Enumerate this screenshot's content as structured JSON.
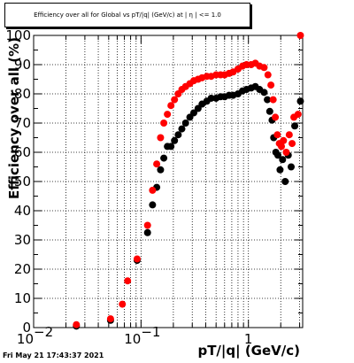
{
  "title": "Efficiency over all for Global vs pT/|q| (GeV/c) at | η | <= 1.0",
  "footer": "Fri May 21 17:43:37 2021",
  "colors": {
    "series_red": "#ff0000",
    "series_black": "#000000"
  },
  "chart_data": {
    "type": "scatter",
    "xlabel": "pT/|q| (GeV/c)",
    "ylabel": "Efficiency over all (%)",
    "xscale": "log",
    "xlim": [
      0.01,
      3.2
    ],
    "ylim": [
      0,
      100
    ],
    "grid": true,
    "x_ticks": [
      {
        "value": 0.01,
        "label": "10",
        "exp": "−2"
      },
      {
        "value": 0.1,
        "label": "10",
        "exp": "−1"
      },
      {
        "value": 1,
        "label": "1",
        "exp": ""
      }
    ],
    "y_ticks": [
      0,
      10,
      20,
      30,
      40,
      50,
      60,
      70,
      80,
      90,
      100
    ],
    "series": [
      {
        "color": "#ff0000",
        "points": [
          [
            0.025,
            1
          ],
          [
            0.052,
            3
          ],
          [
            0.067,
            8
          ],
          [
            0.075,
            16
          ],
          [
            0.092,
            23.5
          ],
          [
            0.115,
            35
          ],
          [
            0.128,
            47
          ],
          [
            0.14,
            56
          ],
          [
            0.152,
            65
          ],
          [
            0.163,
            70
          ],
          [
            0.176,
            73
          ],
          [
            0.19,
            76
          ],
          [
            0.205,
            78
          ],
          [
            0.222,
            80
          ],
          [
            0.24,
            81.5
          ],
          [
            0.26,
            82.5
          ],
          [
            0.285,
            83.5
          ],
          [
            0.31,
            84.5
          ],
          [
            0.34,
            85
          ],
          [
            0.37,
            85.5
          ],
          [
            0.41,
            86
          ],
          [
            0.45,
            86
          ],
          [
            0.5,
            86.5
          ],
          [
            0.55,
            86.5
          ],
          [
            0.6,
            86.5
          ],
          [
            0.66,
            87
          ],
          [
            0.72,
            87.5
          ],
          [
            0.8,
            88.5
          ],
          [
            0.88,
            89.5
          ],
          [
            0.96,
            90
          ],
          [
            1.06,
            90
          ],
          [
            1.16,
            90.5
          ],
          [
            1.27,
            89.5
          ],
          [
            1.4,
            89
          ],
          [
            1.52,
            86.5
          ],
          [
            1.62,
            83
          ],
          [
            1.7,
            78
          ],
          [
            1.78,
            72
          ],
          [
            1.86,
            66
          ],
          [
            1.94,
            63
          ],
          [
            2.03,
            62
          ],
          [
            2.12,
            64
          ],
          [
            2.25,
            60
          ],
          [
            2.4,
            66
          ],
          [
            2.55,
            63
          ],
          [
            2.65,
            72
          ],
          [
            2.9,
            73
          ],
          [
            3.05,
            100
          ]
        ]
      },
      {
        "color": "#000000",
        "points": [
          [
            0.025,
            0.5
          ],
          [
            0.052,
            2.5
          ],
          [
            0.092,
            23
          ],
          [
            0.115,
            32.5
          ],
          [
            0.128,
            42
          ],
          [
            0.14,
            48
          ],
          [
            0.152,
            54
          ],
          [
            0.163,
            58
          ],
          [
            0.176,
            62
          ],
          [
            0.19,
            62
          ],
          [
            0.205,
            64
          ],
          [
            0.222,
            66
          ],
          [
            0.24,
            68
          ],
          [
            0.26,
            70
          ],
          [
            0.285,
            72
          ],
          [
            0.31,
            73.5
          ],
          [
            0.34,
            75
          ],
          [
            0.37,
            76.5
          ],
          [
            0.41,
            77.5
          ],
          [
            0.45,
            78.5
          ],
          [
            0.5,
            78.5
          ],
          [
            0.55,
            79
          ],
          [
            0.6,
            79
          ],
          [
            0.66,
            79.5
          ],
          [
            0.72,
            79.5
          ],
          [
            0.8,
            80
          ],
          [
            0.88,
            81
          ],
          [
            0.96,
            81.5
          ],
          [
            1.06,
            82
          ],
          [
            1.16,
            82.5
          ],
          [
            1.27,
            81.5
          ],
          [
            1.4,
            80.5
          ],
          [
            1.5,
            78
          ],
          [
            1.58,
            74
          ],
          [
            1.66,
            71
          ],
          [
            1.72,
            65
          ],
          [
            1.8,
            60
          ],
          [
            1.88,
            59
          ],
          [
            1.97,
            54
          ],
          [
            2.08,
            57.5
          ],
          [
            2.2,
            50
          ],
          [
            2.35,
            59
          ],
          [
            2.5,
            55
          ],
          [
            2.7,
            69
          ],
          [
            3.05,
            77.5
          ]
        ]
      }
    ]
  }
}
